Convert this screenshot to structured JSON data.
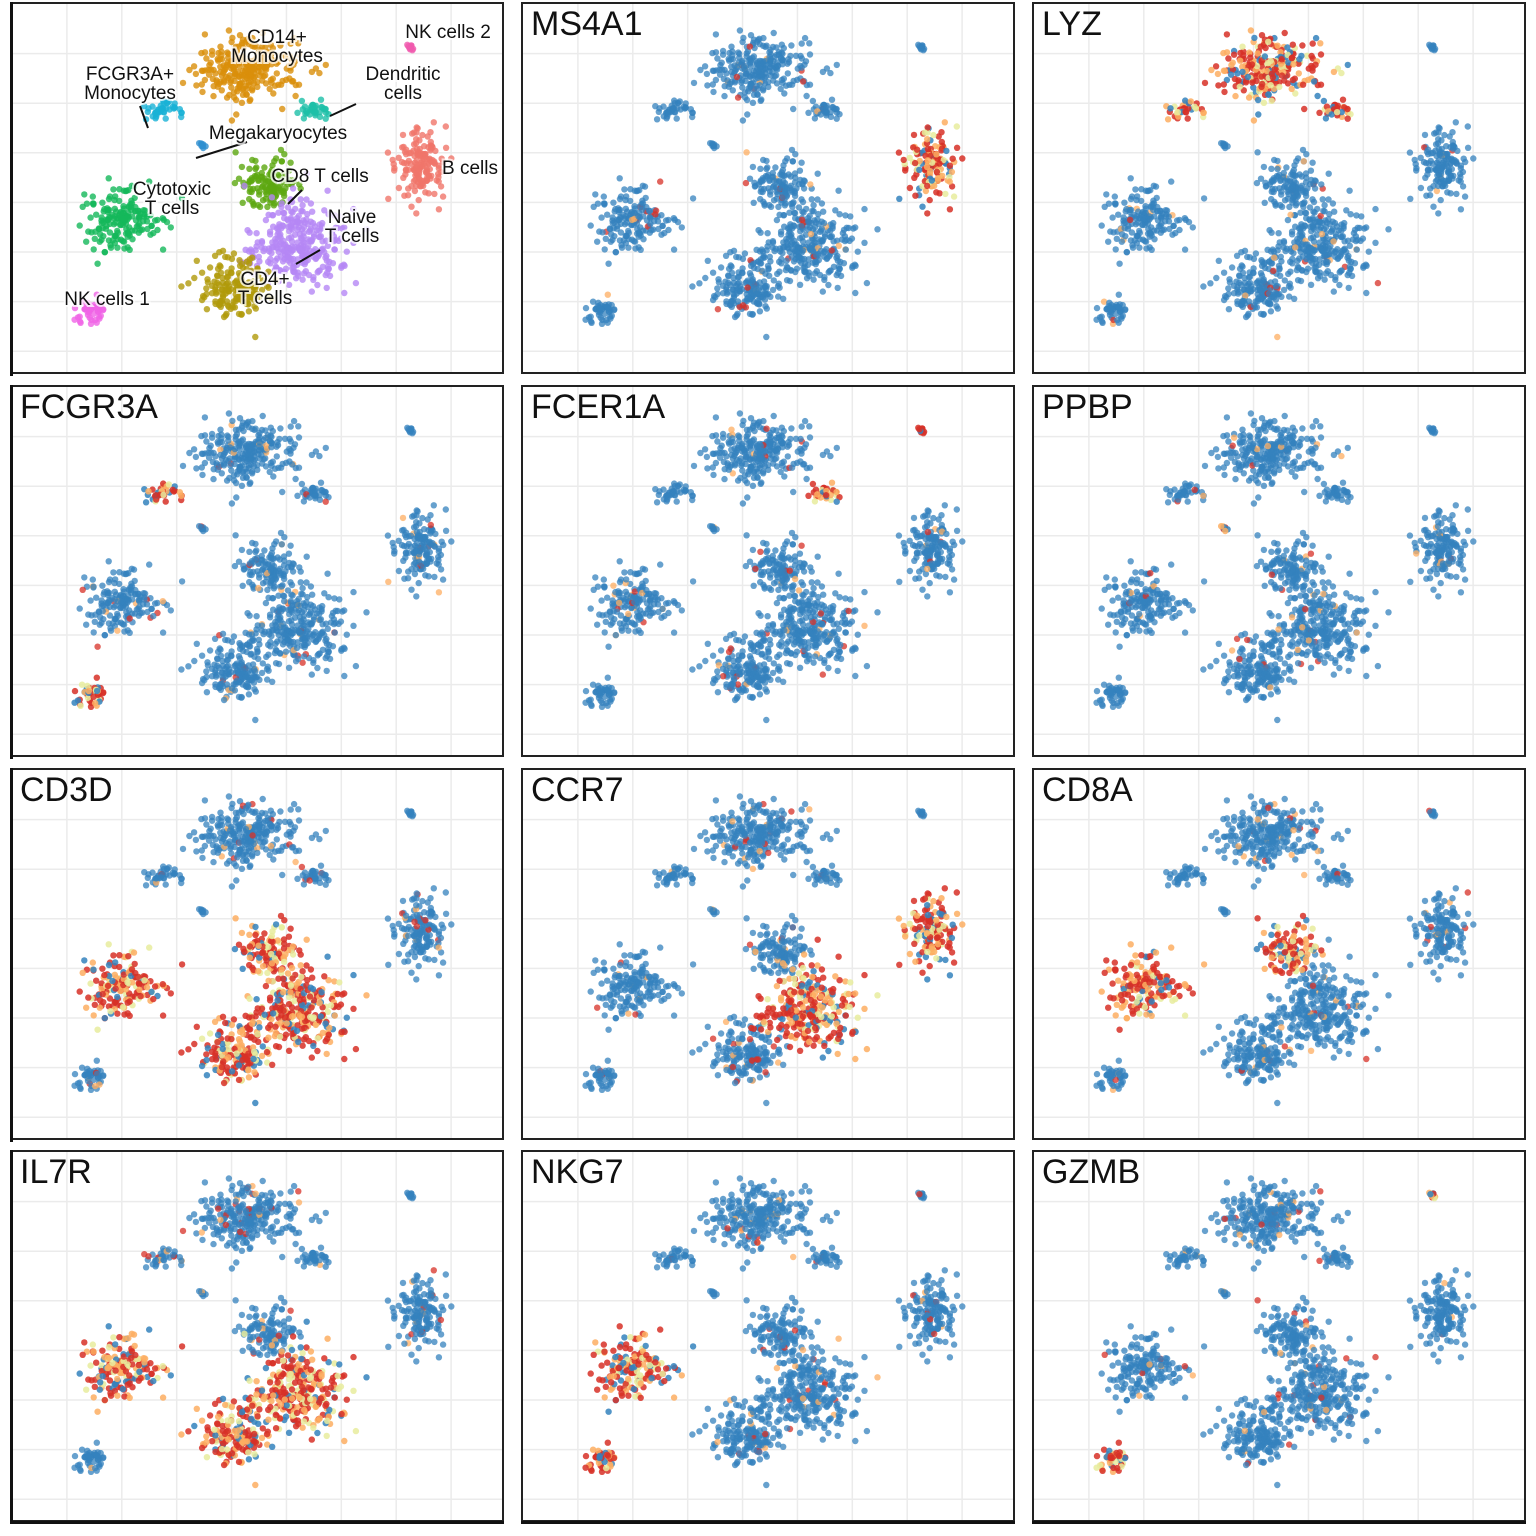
{
  "figure": {
    "cluster_panel": {
      "labels": [
        {
          "text": "CD14+\nMonocytes",
          "cluster": "cd14"
        },
        {
          "text": "NK cells 2",
          "cluster": "nk2"
        },
        {
          "text": "FCGR3A+\nMonocytes",
          "cluster": "fcgr3a"
        },
        {
          "text": "Dendritic\ncells",
          "cluster": "dc"
        },
        {
          "text": "Megakaryocytes",
          "cluster": "mk"
        },
        {
          "text": "B cells",
          "cluster": "b"
        },
        {
          "text": "Cytotoxic\nT cells",
          "cluster": "cyto"
        },
        {
          "text": "CD8 T cells",
          "cluster": "cd8"
        },
        {
          "text": "Naive\nT cells",
          "cluster": "naive"
        },
        {
          "text": "CD4+\nT cells",
          "cluster": "cd4"
        },
        {
          "text": "NK cells 1",
          "cluster": "nk1"
        }
      ]
    },
    "gene_panels": [
      "MS4A1",
      "LYZ",
      "FCGR3A",
      "FCER1A",
      "PPBP",
      "CD3D",
      "CCR7",
      "CD8A",
      "IL7R",
      "NKG7",
      "GZMB"
    ]
  },
  "chart_data": {
    "type": "scatter",
    "description_of_marks": "t-SNE embedding of cells; first panel colored by cluster, remaining panels colored by gene expression (blue = low, yellow = mid, red = high)",
    "clusters": [
      {
        "id": "cd14",
        "color": "#D98F0A",
        "center": [
          -2,
          28
        ],
        "spread": [
          9,
          5
        ]
      },
      {
        "id": "fcgr3a",
        "color": "#19B2D6",
        "center": [
          -19,
          21
        ],
        "spread": [
          3,
          1.5
        ]
      },
      {
        "id": "dc",
        "color": "#1DBFA8",
        "center": [
          11,
          21
        ],
        "spread": [
          3,
          1.5
        ]
      },
      {
        "id": "mk",
        "color": "#2E8FD0",
        "center": [
          -11,
          15
        ],
        "spread": [
          0.6,
          0.6
        ]
      },
      {
        "id": "nk2",
        "color": "#F05AAE",
        "center": [
          30,
          32
        ],
        "spread": [
          0.7,
          0.6
        ]
      },
      {
        "id": "b",
        "color": "#F0766A",
        "center": [
          32,
          11
        ],
        "spread": [
          4,
          6
        ]
      },
      {
        "id": "cyto",
        "color": "#14B85A",
        "center": [
          -27,
          2
        ],
        "spread": [
          7,
          5
        ]
      },
      {
        "id": "cd8",
        "color": "#5DA810",
        "center": [
          2,
          8
        ],
        "spread": [
          5,
          4
        ]
      },
      {
        "id": "naive",
        "color": "#B587F5",
        "center": [
          8,
          -3
        ],
        "spread": [
          9,
          7
        ]
      },
      {
        "id": "cd4",
        "color": "#B09A0A",
        "center": [
          -5,
          -10
        ],
        "spread": [
          6,
          5
        ]
      },
      {
        "id": "nk1",
        "color": "#F064E6",
        "center": [
          -33,
          -14
        ],
        "spread": [
          3,
          2
        ]
      }
    ],
    "expression_high": {
      "MS4A1": [
        "b"
      ],
      "LYZ": [
        "cd14",
        "fcgr3a",
        "dc"
      ],
      "FCGR3A": [
        "fcgr3a",
        "nk1"
      ],
      "FCER1A": [
        "dc",
        "nk2"
      ],
      "PPBP": [
        "mk"
      ],
      "CD3D": [
        "cyto",
        "cd8",
        "naive",
        "cd4"
      ],
      "CCR7": [
        "naive",
        "b"
      ],
      "CD8A": [
        "cyto",
        "cd8"
      ],
      "IL7R": [
        "cd4",
        "naive",
        "cyto"
      ],
      "NKG7": [
        "cyto",
        "nk1"
      ],
      "GZMB": [
        "nk1",
        "nk2"
      ]
    },
    "colormap": [
      "#3482BD",
      "#E8EC9E",
      "#FDAE61",
      "#D73027"
    ],
    "xlim": [
      -45,
      45
    ],
    "ylim": [
      -22,
      36
    ],
    "grid": true
  }
}
